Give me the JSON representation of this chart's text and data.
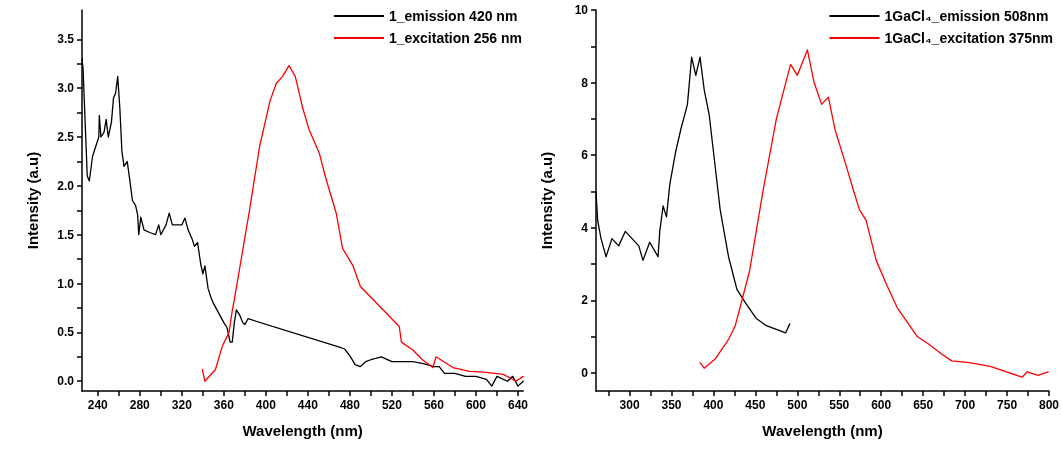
{
  "chart_data": [
    {
      "type": "line",
      "xlabel": "Wavelength (nm)",
      "ylabel": "Intensity (a.u)",
      "xlim": [
        225,
        645
      ],
      "ylim": [
        -0.1,
        3.8
      ],
      "xticks": [
        240,
        {
          "value": 260,
          "label": null
        },
        280,
        {
          "value": 300,
          "label": null
        },
        320,
        {
          "value": 340,
          "label": null
        },
        360,
        {
          "value": 380,
          "label": null
        },
        400,
        {
          "value": 420,
          "label": null
        },
        440,
        {
          "value": 460,
          "label": null
        },
        480,
        {
          "value": 500,
          "label": null
        },
        520,
        {
          "value": 540,
          "label": null
        },
        560,
        {
          "value": 580,
          "label": null
        },
        600,
        {
          "value": 620,
          "label": null
        },
        640
      ],
      "yticks": [
        {
          "value": 0,
          "label": "0.0"
        },
        {
          "value": 0.25,
          "label": null
        },
        0.5,
        {
          "value": 0.75,
          "label": null
        },
        {
          "value": 1,
          "label": "1.0"
        },
        {
          "value": 1.25,
          "label": null
        },
        1.5,
        {
          "value": 1.75,
          "label": null
        },
        {
          "value": 2,
          "label": "2.0"
        },
        {
          "value": 2.25,
          "label": null
        },
        2.5,
        {
          "value": 2.75,
          "label": null
        },
        {
          "value": 3,
          "label": "3.0"
        },
        {
          "value": 3.25,
          "label": null
        },
        3.5
      ],
      "grid": false,
      "legend": "top right",
      "marker": "none",
      "line_style": "solid",
      "series": [
        {
          "name": "1_emission 420 nm",
          "color": "#000000",
          "x": [
            225,
            226,
            230,
            232,
            235,
            238,
            241,
            241.5,
            243,
            246,
            248,
            250,
            253,
            255,
            257,
            259,
            261,
            263,
            265,
            268,
            270,
            273,
            276,
            278,
            279,
            281,
            284,
            290,
            295,
            298,
            300,
            305,
            308,
            311,
            315,
            320,
            323,
            326,
            330,
            332,
            335,
            338,
            340,
            342,
            345,
            348,
            350,
            355,
            360,
            363,
            366,
            368,
            370,
            372,
            375,
            378,
            380,
            383,
            470,
            475,
            480,
            485,
            490,
            495,
            500,
            510,
            520,
            530,
            540,
            550,
            560,
            565,
            570,
            580,
            590,
            600,
            610,
            615,
            620,
            630,
            635,
            640,
            645
          ],
          "values": [
            3.3,
            3.2,
            2.1,
            2.05,
            2.3,
            2.4,
            2.5,
            2.72,
            2.5,
            2.55,
            2.68,
            2.5,
            2.65,
            2.9,
            2.95,
            3.12,
            2.8,
            2.35,
            2.2,
            2.25,
            2.1,
            1.85,
            1.8,
            1.7,
            1.5,
            1.68,
            1.55,
            1.52,
            1.5,
            1.6,
            1.5,
            1.6,
            1.72,
            1.6,
            1.6,
            1.6,
            1.67,
            1.55,
            1.45,
            1.38,
            1.42,
            1.2,
            1.1,
            1.18,
            0.95,
            0.85,
            0.8,
            0.7,
            0.6,
            0.55,
            0.4,
            0.4,
            0.6,
            0.73,
            0.68,
            0.6,
            0.58,
            0.64,
            0.35,
            0.33,
            0.26,
            0.17,
            0.15,
            0.2,
            0.22,
            0.25,
            0.2,
            0.2,
            0.2,
            0.18,
            0.15,
            0.15,
            0.08,
            0.08,
            0.05,
            0.05,
            0.02,
            -0.05,
            0.05,
            0,
            0.05,
            -0.05,
            0
          ]
        },
        {
          "name": "1_excitation 256 nm",
          "color": "#ff0000",
          "x": [
            339.5,
            342,
            352,
            358.6,
            365,
            368,
            371,
            384,
            394,
            404,
            410,
            416,
            422,
            428,
            435,
            441,
            451,
            457,
            467,
            473,
            483,
            490,
            527,
            529,
            540,
            549,
            559,
            562,
            578,
            594,
            610,
            626,
            638,
            645
          ],
          "values": [
            0.12,
            0,
            0.12,
            0.36,
            0.5,
            0.72,
            0.9,
            1.72,
            2.4,
            2.87,
            3.05,
            3.12,
            3.23,
            3.12,
            2.8,
            2.58,
            2.33,
            2.08,
            1.72,
            1.36,
            1.18,
            0.97,
            0.56,
            0.4,
            0.32,
            0.22,
            0.14,
            0.25,
            0.14,
            0.1,
            0.09,
            0.07,
            0,
            0.05
          ]
        }
      ]
    },
    {
      "type": "line",
      "xlabel": "Wavelength (nm)",
      "ylabel": "Intensity (a.u)",
      "xlim": [
        260,
        800
      ],
      "ylim": [
        -0.5,
        10
      ],
      "xticks": [
        {
          "value": 275,
          "label": null
        },
        300,
        {
          "value": 325,
          "label": null
        },
        350,
        {
          "value": 375,
          "label": null
        },
        400,
        {
          "value": 425,
          "label": null
        },
        450,
        {
          "value": 475,
          "label": null
        },
        500,
        {
          "value": 525,
          "label": null
        },
        550,
        {
          "value": 575,
          "label": null
        },
        600,
        {
          "value": 625,
          "label": null
        },
        650,
        {
          "value": 675,
          "label": null
        },
        700,
        {
          "value": 725,
          "label": null
        },
        750,
        {
          "value": 775,
          "label": null
        },
        800
      ],
      "yticks": [
        0,
        {
          "value": 1,
          "label": null
        },
        2,
        {
          "value": 3,
          "label": null
        },
        4,
        {
          "value": 5,
          "label": null
        },
        6,
        {
          "value": 7,
          "label": null
        },
        8,
        {
          "value": 9,
          "label": null
        },
        10
      ],
      "grid": false,
      "legend": "top right",
      "marker": "none",
      "line_style": "solid",
      "series": [
        {
          "name": "1GaCl₄_emission 508nm",
          "color": "#000000",
          "x": [
            260,
            262,
            266,
            272,
            279,
            287,
            295,
            303,
            311,
            316,
            324,
            334,
            336,
            340,
            344,
            348,
            355,
            361,
            369,
            374,
            379,
            384,
            389,
            395,
            402,
            408,
            418,
            428,
            439,
            451,
            463,
            475,
            486,
            491
          ],
          "values": [
            5.0,
            4.2,
            3.7,
            3.2,
            3.7,
            3.5,
            3.9,
            3.7,
            3.5,
            3.1,
            3.6,
            3.2,
            3.9,
            4.6,
            4.3,
            5.2,
            6.1,
            6.7,
            7.4,
            8.7,
            8.2,
            8.7,
            7.8,
            7.1,
            5.7,
            4.5,
            3.2,
            2.3,
            1.9,
            1.5,
            1.3,
            1.2,
            1.1,
            1.35
          ]
        },
        {
          "name": "1GaCl₄_excitation 375nm",
          "color": "#ff0000",
          "x": [
            384,
            389,
            402,
            418,
            426,
            434,
            443,
            451,
            459,
            467,
            475,
            484,
            492,
            500,
            512,
            520,
            529,
            537,
            545,
            557,
            566,
            574,
            582,
            594,
            607,
            619,
            631,
            643,
            656,
            672,
            684,
            705,
            730,
            768,
            774,
            787,
            799
          ],
          "values": [
            0.28,
            0.13,
            0.38,
            0.92,
            1.3,
            2.0,
            2.8,
            3.9,
            5.0,
            6.0,
            7.0,
            7.8,
            8.5,
            8.2,
            8.9,
            8.0,
            7.4,
            7.6,
            6.7,
            5.8,
            5.1,
            4.5,
            4.2,
            3.1,
            2.4,
            1.8,
            1.4,
            1.0,
            0.8,
            0.52,
            0.33,
            0.28,
            0.18,
            -0.12,
            0.03,
            -0.07,
            0.03
          ]
        }
      ]
    }
  ]
}
